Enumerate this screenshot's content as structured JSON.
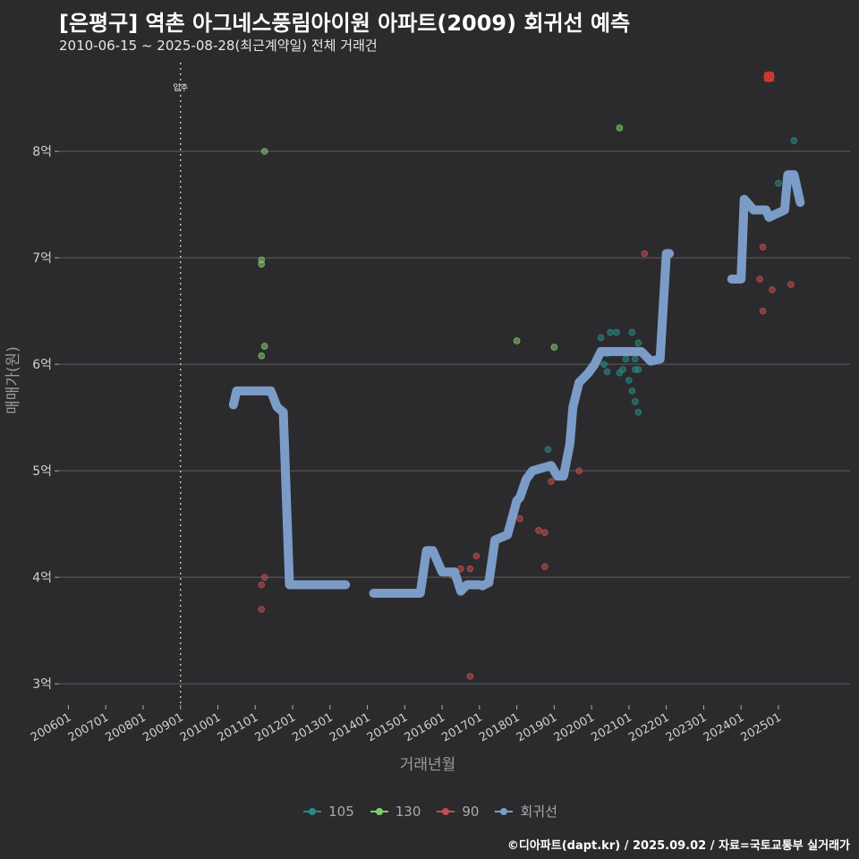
{
  "title": "[은평구] 역촌 아그네스풍림아이원 아파트(2009) 회귀선 예측",
  "subtitle": "2010-06-15 ~ 2025-08-28(최근계약일) 전체 거래건",
  "caption": "©디아파트(dapt.kr) / 2025.09.02 / 자료=국토교통부 실거래가",
  "chart_data": {
    "type": "scatter",
    "xlabel": "거래년월",
    "ylabel": "매매가(원)",
    "ylim": [
      2.8,
      8.9
    ],
    "xlim": [
      "2005-10",
      "2026-12"
    ],
    "yticks": [
      3,
      4,
      5,
      6,
      7,
      8
    ],
    "ytick_labels": [
      "3억",
      "4억",
      "5억",
      "6억",
      "7억",
      "8억"
    ],
    "xticks": [
      "2006-01",
      "2007-01",
      "2008-01",
      "2009-01",
      "2010-01",
      "2011-01",
      "2012-01",
      "2013-01",
      "2014-01",
      "2015-01",
      "2016-01",
      "2017-01",
      "2018-01",
      "2019-01",
      "2020-01",
      "2021-01",
      "2022-01",
      "2023-01",
      "2024-01",
      "2025-01"
    ],
    "xtick_labels": [
      "200601",
      "200701",
      "200801",
      "200901",
      "201001",
      "201101",
      "201201",
      "201301",
      "201401",
      "201501",
      "201601",
      "201701",
      "201801",
      "201901",
      "202001",
      "202101",
      "202201",
      "202301",
      "202401",
      "202501"
    ],
    "grid": true,
    "legend_position": "bottom",
    "annotation": {
      "label": "입주",
      "x": "2009-01"
    },
    "highlight_point": {
      "x": "2024-10",
      "y": 8.7
    },
    "colors": {
      "105": "#2a8a87",
      "130": "#7fcc6a",
      "90": "#c44d4d",
      "regression": "#7c9cc8",
      "highlight": "#e0392a"
    },
    "series": [
      {
        "name": "105",
        "points": [
          [
            "2018-11",
            5.2
          ],
          [
            "2020-04",
            6.25
          ],
          [
            "2020-05",
            6.0
          ],
          [
            "2020-06",
            5.93
          ],
          [
            "2020-07",
            6.3
          ],
          [
            "2020-09",
            6.3
          ],
          [
            "2020-10",
            5.92
          ],
          [
            "2020-11",
            5.95
          ],
          [
            "2020-12",
            6.05
          ],
          [
            "2021-01",
            5.85
          ],
          [
            "2021-02",
            5.75
          ],
          [
            "2021-03",
            5.65
          ],
          [
            "2021-04",
            5.55
          ],
          [
            "2021-02",
            6.3
          ],
          [
            "2021-03",
            6.05
          ],
          [
            "2021-04",
            6.2
          ],
          [
            "2021-03",
            5.95
          ],
          [
            "2021-04",
            5.95
          ],
          [
            "2020-06",
            6.1
          ],
          [
            "2025-01",
            7.7
          ],
          [
            "2025-06",
            8.1
          ]
        ]
      },
      {
        "name": "130",
        "points": [
          [
            "2011-04",
            8.0
          ],
          [
            "2011-03",
            6.98
          ],
          [
            "2011-03",
            6.94
          ],
          [
            "2011-04",
            6.17
          ],
          [
            "2011-03",
            6.08
          ],
          [
            "2018-01",
            6.22
          ],
          [
            "2019-01",
            6.16
          ],
          [
            "2020-10",
            8.22
          ]
        ]
      },
      {
        "name": "90",
        "points": [
          [
            "2011-03",
            3.7
          ],
          [
            "2011-03",
            3.93
          ],
          [
            "2011-04",
            4.0
          ],
          [
            "2015-10",
            4.25
          ],
          [
            "2016-04",
            4.02
          ],
          [
            "2016-07",
            4.08
          ],
          [
            "2016-10",
            4.08
          ],
          [
            "2016-12",
            4.2
          ],
          [
            "2016-10",
            3.07
          ],
          [
            "2018-02",
            4.55
          ],
          [
            "2018-08",
            4.44
          ],
          [
            "2018-10",
            4.42
          ],
          [
            "2018-10",
            4.1
          ],
          [
            "2018-12",
            4.9
          ],
          [
            "2019-09",
            5.0
          ],
          [
            "2021-06",
            7.04
          ],
          [
            "2024-07",
            6.8
          ],
          [
            "2024-08",
            7.1
          ],
          [
            "2024-08",
            6.5
          ],
          [
            "2024-11",
            6.7
          ],
          [
            "2025-05",
            6.75
          ],
          [
            "2024-10",
            8.7
          ]
        ]
      }
    ],
    "regression": {
      "name": "회귀선",
      "points": [
        [
          "2010-06",
          5.62
        ],
        [
          "2010-07",
          5.75
        ],
        [
          "2011-06",
          5.75
        ],
        [
          "2011-08",
          5.6
        ],
        [
          "2011-10",
          5.55
        ],
        [
          "2011-12",
          3.93
        ],
        [
          "2013-06",
          3.93
        ],
        [
          "2014-03",
          3.85
        ],
        [
          "2015-06",
          3.85
        ],
        [
          "2015-08",
          4.25
        ],
        [
          "2015-10",
          4.25
        ],
        [
          "2016-01",
          4.05
        ],
        [
          "2016-05",
          4.05
        ],
        [
          "2016-07",
          3.87
        ],
        [
          "2016-09",
          3.93
        ],
        [
          "2017-01",
          3.93
        ],
        [
          "2017-02",
          3.92
        ],
        [
          "2017-04",
          3.95
        ],
        [
          "2017-06",
          4.35
        ],
        [
          "2017-10",
          4.4
        ],
        [
          "2018-01",
          4.72
        ],
        [
          "2018-02",
          4.75
        ],
        [
          "2018-04",
          4.92
        ],
        [
          "2018-06",
          5.0
        ],
        [
          "2018-12",
          5.05
        ],
        [
          "2019-02",
          4.95
        ],
        [
          "2019-04",
          4.95
        ],
        [
          "2019-06",
          5.25
        ],
        [
          "2019-07",
          5.6
        ],
        [
          "2019-09",
          5.83
        ],
        [
          "2019-12",
          5.92
        ],
        [
          "2020-02",
          6.0
        ],
        [
          "2020-04",
          6.12
        ],
        [
          "2020-07",
          6.12
        ],
        [
          "2020-10",
          6.12
        ],
        [
          "2021-05",
          6.12
        ],
        [
          "2021-08",
          6.03
        ],
        [
          "2021-11",
          6.05
        ],
        [
          "2022-01",
          7.04
        ],
        [
          "2022-02",
          7.04
        ],
        [
          "2023-10",
          6.8
        ],
        [
          "2024-01",
          6.8
        ],
        [
          "2024-02",
          7.55
        ],
        [
          "2024-05",
          7.45
        ],
        [
          "2024-09",
          7.45
        ],
        [
          "2024-10",
          7.38
        ],
        [
          "2025-03",
          7.45
        ],
        [
          "2025-04",
          7.78
        ],
        [
          "2025-06",
          7.78
        ],
        [
          "2025-08",
          7.52
        ]
      ],
      "breaks": [
        "2013-06",
        "2022-02"
      ]
    }
  }
}
